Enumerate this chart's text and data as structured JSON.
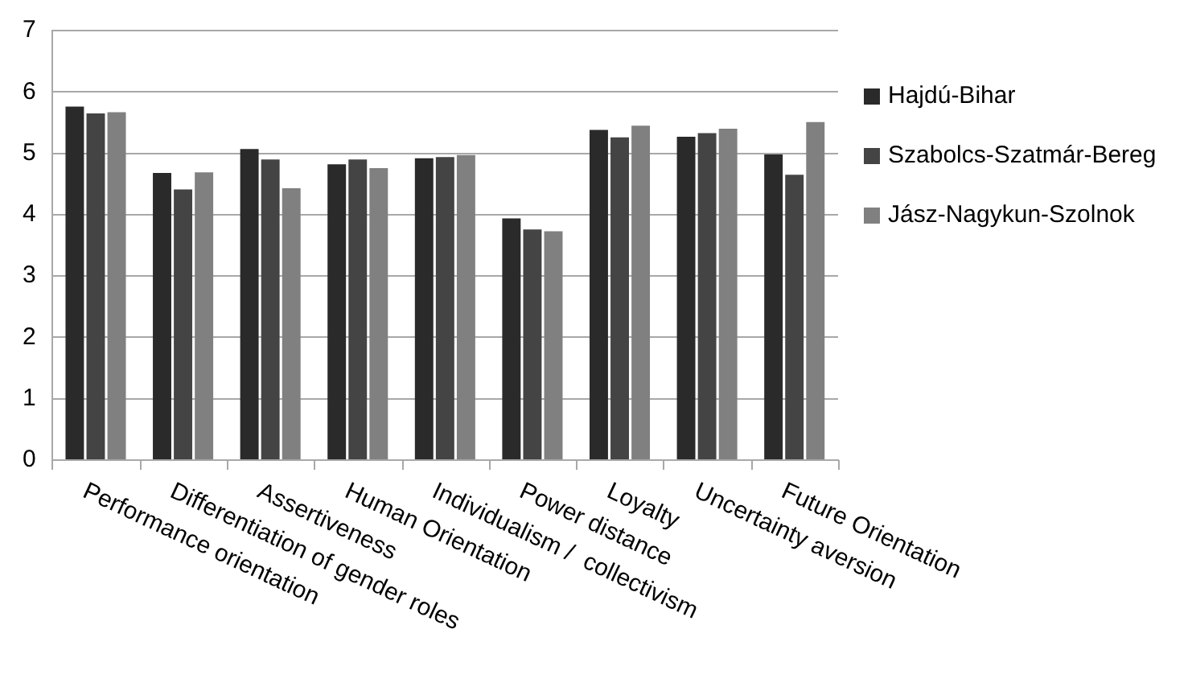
{
  "chart_data": {
    "type": "bar",
    "categories": [
      "Performance orientation",
      "Differentiation of gender roles",
      "Assertiveness",
      "Human Orientation",
      "Individualism /  collectivism",
      "Power distance",
      "Loyalty",
      "Uncertainty aversion",
      "Future Orientation"
    ],
    "series": [
      {
        "name": "Hajdú-Bihar",
        "color": "#2a2a2a",
        "values": [
          5.76,
          4.68,
          5.07,
          4.82,
          4.92,
          3.94,
          5.38,
          5.27,
          4.98
        ]
      },
      {
        "name": "Szabolcs-Szatmár-Bereg",
        "color": "#444444",
        "values": [
          5.65,
          4.41,
          4.9,
          4.9,
          4.94,
          3.76,
          5.26,
          5.33,
          4.65
        ]
      },
      {
        "name": "Jász-Nagykun-Szolnok",
        "color": "#808080",
        "values": [
          5.67,
          4.69,
          4.43,
          4.76,
          4.97,
          3.73,
          5.45,
          5.4,
          5.51
        ]
      }
    ],
    "ylim": [
      0,
      7
    ],
    "yticks": [
      0,
      1,
      2,
      3,
      4,
      5,
      6,
      7
    ],
    "grid": "y",
    "legend": "right"
  }
}
